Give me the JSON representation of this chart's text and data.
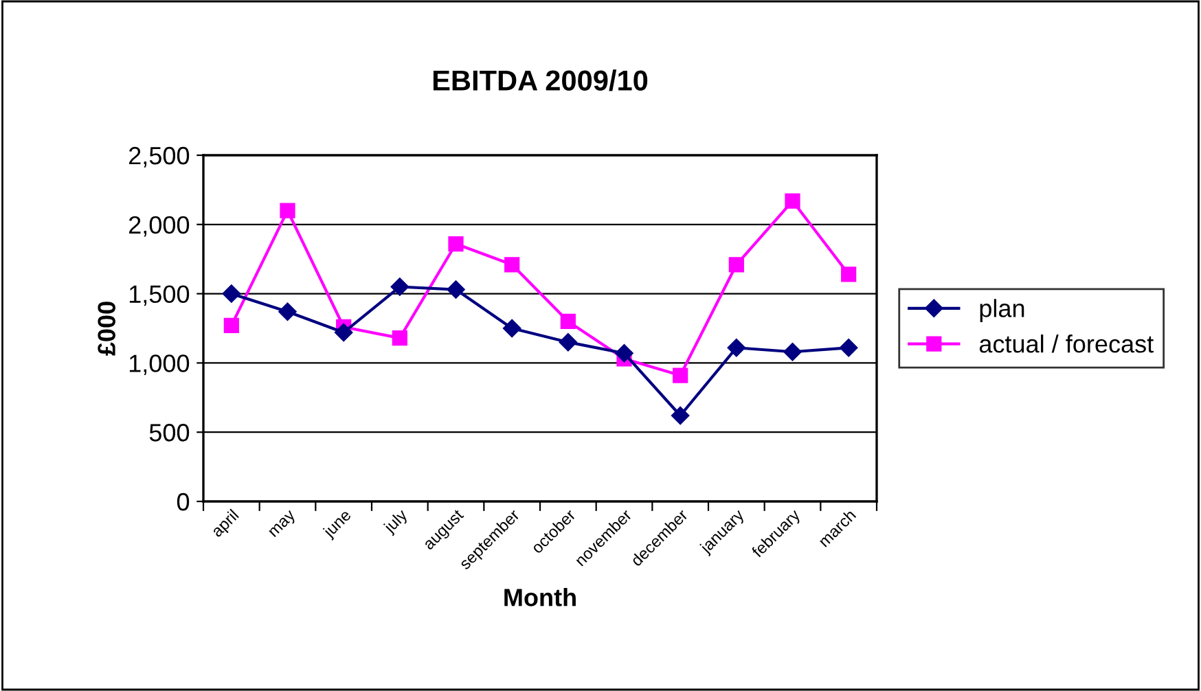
{
  "chart_data": {
    "type": "line",
    "title": "EBITDA 2009/10",
    "xlabel": "Month",
    "ylabel": "£000",
    "categories": [
      "april",
      "may",
      "june",
      "july",
      "august",
      "september",
      "october",
      "november",
      "december",
      "january",
      "february",
      "march"
    ],
    "series": [
      {
        "name": "plan",
        "color": "#000080",
        "marker": "diamond",
        "values": [
          1500,
          1370,
          1220,
          1550,
          1530,
          1250,
          1150,
          1070,
          620,
          1110,
          1080,
          1110
        ]
      },
      {
        "name": "actual / forecast",
        "color": "#ff00ff",
        "marker": "square",
        "values": [
          1270,
          2100,
          1260,
          1180,
          1860,
          1710,
          1300,
          1030,
          910,
          1710,
          2170,
          1640
        ]
      }
    ],
    "ylim": [
      0,
      2500
    ],
    "yticks": [
      {
        "value": 0,
        "label": "0"
      },
      {
        "value": 500,
        "label": "500"
      },
      {
        "value": 1000,
        "label": "1,000"
      },
      {
        "value": 1500,
        "label": "1,500"
      },
      {
        "value": 2000,
        "label": "2,000"
      },
      {
        "value": 2500,
        "label": "2,500"
      }
    ],
    "grid": "y",
    "legend": "right",
    "line_style": "solid"
  }
}
